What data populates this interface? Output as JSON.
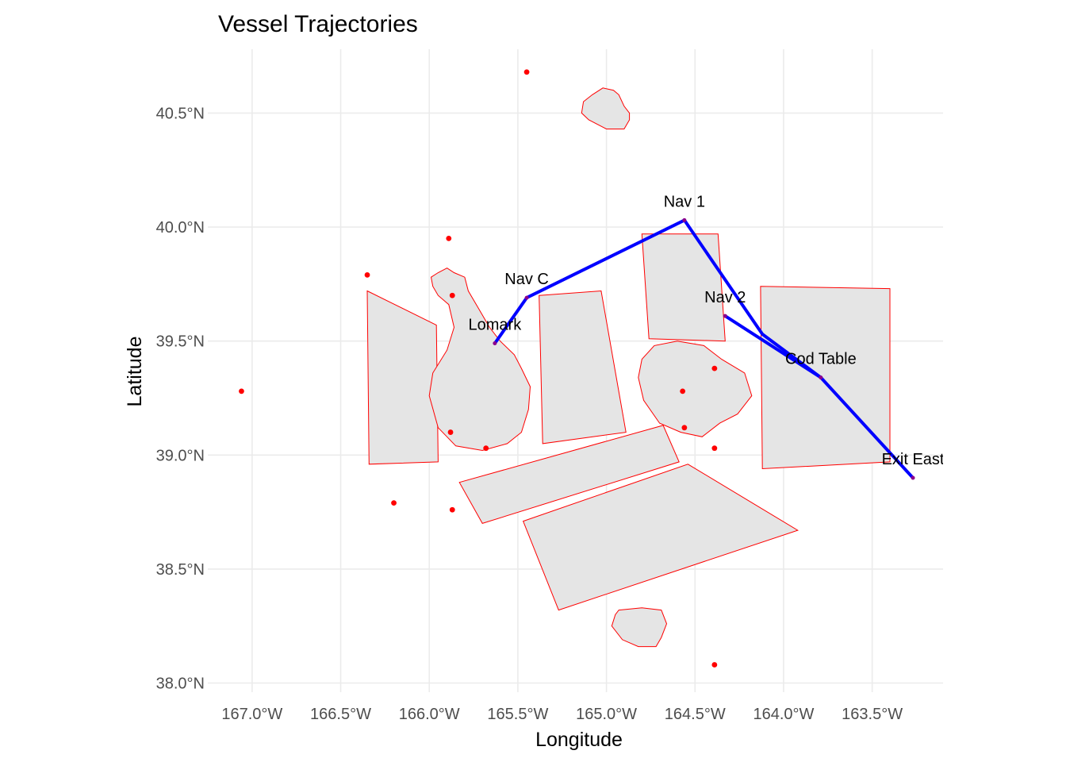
{
  "title": "Vessel Trajectories",
  "axes": {
    "xlabel": "Longitude",
    "ylabel": "Latitude",
    "xlim": [
      -167.25,
      -163.1
    ],
    "ylim": [
      37.96,
      40.78
    ],
    "x_ticks": [
      {
        "value": -167.0,
        "label": "167.0°W"
      },
      {
        "value": -166.5,
        "label": "166.5°W"
      },
      {
        "value": -166.0,
        "label": "166.0°W"
      },
      {
        "value": -165.5,
        "label": "165.5°W"
      },
      {
        "value": -165.0,
        "label": "165.0°W"
      },
      {
        "value": -164.5,
        "label": "164.5°W"
      },
      {
        "value": -164.0,
        "label": "164.0°W"
      },
      {
        "value": -163.5,
        "label": "163.5°W"
      }
    ],
    "y_ticks": [
      {
        "value": 38.0,
        "label": "38.0°N"
      },
      {
        "value": 38.5,
        "label": "38.5°N"
      },
      {
        "value": 39.0,
        "label": "39.0°N"
      },
      {
        "value": 39.5,
        "label": "39.5°N"
      },
      {
        "value": 40.0,
        "label": "40.0°N"
      },
      {
        "value": 40.5,
        "label": "40.5°N"
      }
    ],
    "grid": true
  },
  "colors": {
    "land_fill": "#e5e5e5",
    "outline": "#ff0000",
    "point": "#ff0000",
    "track": "#0000ff",
    "waypoint": "#8b008b",
    "grid": "#ebebeb"
  },
  "islands": [
    {
      "name": "north-island",
      "coords": [
        [
          -164.87,
          40.5
        ],
        [
          -164.9,
          40.53
        ],
        [
          -164.93,
          40.58
        ],
        [
          -164.96,
          40.6
        ],
        [
          -165.02,
          40.61
        ],
        [
          -165.08,
          40.58
        ],
        [
          -165.13,
          40.55
        ],
        [
          -165.14,
          40.5
        ],
        [
          -165.1,
          40.47
        ],
        [
          -165.0,
          40.43
        ],
        [
          -164.9,
          40.43
        ],
        [
          -164.87,
          40.47
        ]
      ]
    },
    {
      "name": "west-island",
      "coords": [
        [
          -165.99,
          39.78
        ],
        [
          -165.95,
          39.8
        ],
        [
          -165.9,
          39.82
        ],
        [
          -165.86,
          39.8
        ],
        [
          -165.8,
          39.78
        ],
        [
          -165.78,
          39.72
        ],
        [
          -165.72,
          39.64
        ],
        [
          -165.66,
          39.56
        ],
        [
          -165.6,
          39.5
        ],
        [
          -165.52,
          39.44
        ],
        [
          -165.48,
          39.38
        ],
        [
          -165.43,
          39.3
        ],
        [
          -165.44,
          39.2
        ],
        [
          -165.48,
          39.1
        ],
        [
          -165.56,
          39.05
        ],
        [
          -165.7,
          39.02
        ],
        [
          -165.85,
          39.04
        ],
        [
          -165.95,
          39.12
        ],
        [
          -166.0,
          39.26
        ],
        [
          -165.98,
          39.36
        ],
        [
          -165.9,
          39.46
        ],
        [
          -165.86,
          39.56
        ],
        [
          -165.89,
          39.66
        ],
        [
          -165.95,
          39.7
        ],
        [
          -165.98,
          39.74
        ]
      ]
    },
    {
      "name": "east-island",
      "coords": [
        [
          -164.8,
          39.42
        ],
        [
          -164.73,
          39.48
        ],
        [
          -164.6,
          39.5
        ],
        [
          -164.45,
          39.48
        ],
        [
          -164.35,
          39.42
        ],
        [
          -164.22,
          39.36
        ],
        [
          -164.18,
          39.26
        ],
        [
          -164.26,
          39.18
        ],
        [
          -164.36,
          39.14
        ],
        [
          -164.46,
          39.08
        ],
        [
          -164.58,
          39.1
        ],
        [
          -164.7,
          39.14
        ],
        [
          -164.79,
          39.24
        ],
        [
          -164.82,
          39.34
        ]
      ]
    },
    {
      "name": "south-island",
      "coords": [
        [
          -164.93,
          38.32
        ],
        [
          -164.8,
          38.33
        ],
        [
          -164.69,
          38.32
        ],
        [
          -164.66,
          38.26
        ],
        [
          -164.69,
          38.2
        ],
        [
          -164.72,
          38.16
        ],
        [
          -164.82,
          38.16
        ],
        [
          -164.91,
          38.19
        ],
        [
          -164.97,
          38.25
        ],
        [
          -164.95,
          38.3
        ]
      ]
    }
  ],
  "zones": [
    {
      "name": "zone-west",
      "coords": [
        [
          -166.35,
          39.72
        ],
        [
          -165.96,
          39.57
        ],
        [
          -165.95,
          38.97
        ],
        [
          -166.34,
          38.96
        ]
      ]
    },
    {
      "name": "zone-center",
      "coords": [
        [
          -165.38,
          39.7
        ],
        [
          -165.03,
          39.72
        ],
        [
          -164.89,
          39.1
        ],
        [
          -165.36,
          39.05
        ]
      ]
    },
    {
      "name": "zone-north",
      "coords": [
        [
          -164.8,
          39.97
        ],
        [
          -164.37,
          39.97
        ],
        [
          -164.33,
          39.5
        ],
        [
          -164.76,
          39.51
        ]
      ]
    },
    {
      "name": "zone-east",
      "coords": [
        [
          -164.13,
          39.74
        ],
        [
          -163.4,
          39.73
        ],
        [
          -163.4,
          38.97
        ],
        [
          -164.12,
          38.94
        ]
      ]
    },
    {
      "name": "zone-south-strip",
      "coords": [
        [
          -165.83,
          38.88
        ],
        [
          -164.68,
          39.13
        ],
        [
          -164.59,
          38.97
        ],
        [
          -165.7,
          38.7
        ]
      ]
    },
    {
      "name": "zone-south-large",
      "coords": [
        [
          -165.47,
          38.71
        ],
        [
          -164.54,
          38.96
        ],
        [
          -163.92,
          38.67
        ],
        [
          -165.27,
          38.32
        ]
      ]
    }
  ],
  "points": [
    [
      -165.45,
      40.68
    ],
    [
      -165.89,
      39.95
    ],
    [
      -166.35,
      39.79
    ],
    [
      -165.87,
      39.7
    ],
    [
      -167.06,
      39.28
    ],
    [
      -165.88,
      39.1
    ],
    [
      -165.68,
      39.03
    ],
    [
      -166.2,
      38.79
    ],
    [
      -165.87,
      38.76
    ],
    [
      -164.57,
      39.28
    ],
    [
      -164.56,
      39.12
    ],
    [
      -164.39,
      39.38
    ],
    [
      -164.39,
      39.03
    ],
    [
      -164.39,
      38.08
    ]
  ],
  "tracks": [
    {
      "name": "track-main",
      "points": [
        [
          -165.63,
          39.49
        ],
        [
          -165.45,
          39.69
        ],
        [
          -164.56,
          40.03
        ],
        [
          -164.12,
          39.53
        ],
        [
          -163.79,
          39.34
        ],
        [
          -163.27,
          38.9
        ]
      ]
    },
    {
      "name": "track-branch",
      "points": [
        [
          -164.33,
          39.61
        ],
        [
          -163.79,
          39.34
        ]
      ]
    }
  ],
  "waypoints": [
    {
      "lon": -164.56,
      "lat": 40.03,
      "label": "Nav 1"
    },
    {
      "lon": -165.45,
      "lat": 39.69,
      "label": "Nav C"
    },
    {
      "lon": -164.33,
      "lat": 39.61,
      "label": "Nav 2"
    },
    {
      "lon": -165.63,
      "lat": 39.49,
      "label": "Lomark"
    },
    {
      "lon": -163.79,
      "lat": 39.34,
      "label": "Cod Table"
    },
    {
      "lon": -163.27,
      "lat": 38.9,
      "label": "Exit East"
    }
  ]
}
